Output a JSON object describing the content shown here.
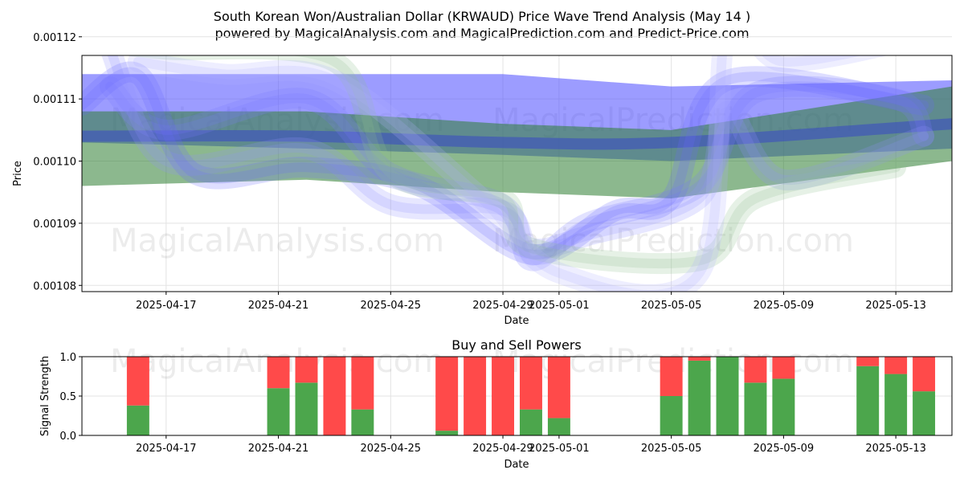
{
  "chart_data": [
    {
      "type": "line",
      "title": "South Korean Won/Australian Dollar (KRWAUD) Price Wave Trend Analysis (May 14 )",
      "subtitle": "powered by MagicalAnalysis.com and MagicalPrediction.com and Predict-Price.com",
      "xlabel": "Date",
      "ylabel": "Price",
      "xlim": [
        "2025-04-14",
        "2025-05-15"
      ],
      "ylim": [
        0.001079,
        0.001117
      ],
      "x_ticks": [
        "2025-04-17",
        "2025-04-21",
        "2025-04-25",
        "2025-04-29",
        "2025-05-01",
        "2025-05-05",
        "2025-05-09",
        "2025-05-13"
      ],
      "y_ticks": [
        "0.00108",
        "0.00109",
        "0.00110",
        "0.00111",
        "0.00112"
      ],
      "grid": true,
      "watermarks": [
        "MagicalAnalysis.com",
        "MagicalPrediction.com",
        "MagicalAnalysis.com",
        "MagicalPrediction.com"
      ],
      "series": [
        {
          "color": "#4a4aff",
          "kind": "band",
          "x": [
            "2025-04-14",
            "2025-04-22",
            "2025-04-29",
            "2025-05-05",
            "2025-05-15"
          ],
          "upper": [
            0.001114,
            0.001114,
            0.001114,
            0.001112,
            0.001113
          ],
          "lower": [
            0.001103,
            0.001102,
            0.001101,
            0.0011,
            0.001102
          ]
        },
        {
          "color": "#2e7d32",
          "kind": "band",
          "x": [
            "2025-04-14",
            "2025-04-22",
            "2025-04-29",
            "2025-05-05",
            "2025-05-15"
          ],
          "upper": [
            0.001108,
            0.001108,
            0.001106,
            0.001105,
            0.001112
          ],
          "lower": [
            0.001096,
            0.001097,
            0.001095,
            0.001094,
            0.0011
          ]
        },
        {
          "color": "#3a4fc0",
          "kind": "line",
          "x": [
            "2025-04-14",
            "2025-04-22",
            "2025-04-29",
            "2025-05-05",
            "2025-05-15"
          ],
          "y": [
            0.001104,
            0.001104,
            0.001103,
            0.001103,
            0.001106
          ]
        },
        {
          "color": "#7a7aff",
          "kind": "wave",
          "x": [
            "2025-04-15",
            "2025-04-17",
            "2025-04-22",
            "2025-04-25",
            "2025-04-29",
            "2025-04-30",
            "2025-05-02",
            "2025-05-06",
            "2025-05-08",
            "2025-05-13",
            "2025-05-14"
          ],
          "y": [
            0.001112,
            0.001105,
            0.00111,
            0.001098,
            0.001093,
            0.001084,
            0.00109,
            0.001096,
            0.001111,
            0.00111,
            0.001104
          ]
        },
        {
          "color": "#9090ff",
          "kind": "wave",
          "x": [
            "2025-04-15",
            "2025-04-17",
            "2025-04-22",
            "2025-04-25",
            "2025-04-29",
            "2025-04-30",
            "2025-05-02",
            "2025-05-06",
            "2025-05-07",
            "2025-05-09",
            "2025-05-14"
          ],
          "y": [
            0.001118,
            0.0011,
            0.001102,
            0.001093,
            0.001092,
            0.001086,
            0.001088,
            0.001094,
            0.001108,
            0.001097,
            0.001104
          ]
        },
        {
          "color": "#6a6aff",
          "kind": "wave",
          "x": [
            "2025-04-14",
            "2025-04-16",
            "2025-04-18",
            "2025-04-22",
            "2025-04-26",
            "2025-04-30",
            "2025-05-03",
            "2025-05-05",
            "2025-05-07",
            "2025-05-14"
          ],
          "y": [
            0.001109,
            0.001114,
            0.001098,
            0.001099,
            0.001096,
            0.001085,
            0.001092,
            0.001094,
            0.001113,
            0.001109
          ]
        },
        {
          "color": "#8cc08c",
          "kind": "wave",
          "x": [
            "2025-04-15",
            "2025-04-17",
            "2025-04-23",
            "2025-04-25",
            "2025-04-29",
            "2025-04-30",
            "2025-05-06",
            "2025-05-08",
            "2025-05-13"
          ],
          "y": [
            0.001119,
            0.001118,
            0.001116,
            0.001098,
            0.001094,
            0.001086,
            0.001084,
            0.001094,
            0.001099
          ]
        },
        {
          "color": "#b0b0ff",
          "kind": "wave",
          "x": [
            "2025-04-16",
            "2025-04-19",
            "2025-04-23",
            "2025-04-28",
            "2025-05-01",
            "2025-05-06",
            "2025-05-07",
            "2025-05-09",
            "2025-05-14"
          ],
          "y": [
            0.001116,
            0.001114,
            0.001113,
            0.001095,
            0.001082,
            0.001082,
            0.001122,
            0.001116,
            0.00112
          ]
        }
      ]
    },
    {
      "type": "bar",
      "title": "Buy and Sell Powers",
      "xlabel": "Date",
      "ylabel": "Signal Strength",
      "xlim": [
        "2025-04-14",
        "2025-05-15"
      ],
      "ylim": [
        0,
        1
      ],
      "x_ticks": [
        "2025-04-17",
        "2025-04-21",
        "2025-04-25",
        "2025-04-29",
        "2025-05-01",
        "2025-05-05",
        "2025-05-09",
        "2025-05-13"
      ],
      "y_ticks": [
        "0.0",
        "0.5",
        "1.0"
      ],
      "grid": true,
      "buy_color": "#4ca64c",
      "sell_color": "#ff4a4a",
      "watermarks": [
        "MagicalAnalysis.com",
        "MagicalPrediction.com"
      ],
      "categories": [
        "2025-04-16",
        "2025-04-21",
        "2025-04-22",
        "2025-04-23",
        "2025-04-24",
        "2025-04-27",
        "2025-04-28",
        "2025-04-29",
        "2025-04-30",
        "2025-05-01",
        "2025-05-05",
        "2025-05-06",
        "2025-05-07",
        "2025-05-08",
        "2025-05-09",
        "2025-05-12",
        "2025-05-13",
        "2025-05-14"
      ],
      "series": [
        {
          "name": "Buy",
          "values": [
            0.38,
            0.6,
            0.67,
            0.0,
            0.33,
            0.06,
            0.0,
            0.0,
            0.33,
            0.22,
            0.5,
            0.95,
            1.0,
            0.67,
            0.72,
            0.88,
            0.78,
            0.56
          ]
        },
        {
          "name": "Sell",
          "values": [
            0.62,
            0.4,
            0.33,
            1.0,
            0.67,
            0.94,
            1.0,
            1.0,
            0.67,
            0.78,
            0.5,
            0.05,
            0.0,
            0.33,
            0.28,
            0.12,
            0.22,
            0.44
          ]
        }
      ]
    }
  ]
}
